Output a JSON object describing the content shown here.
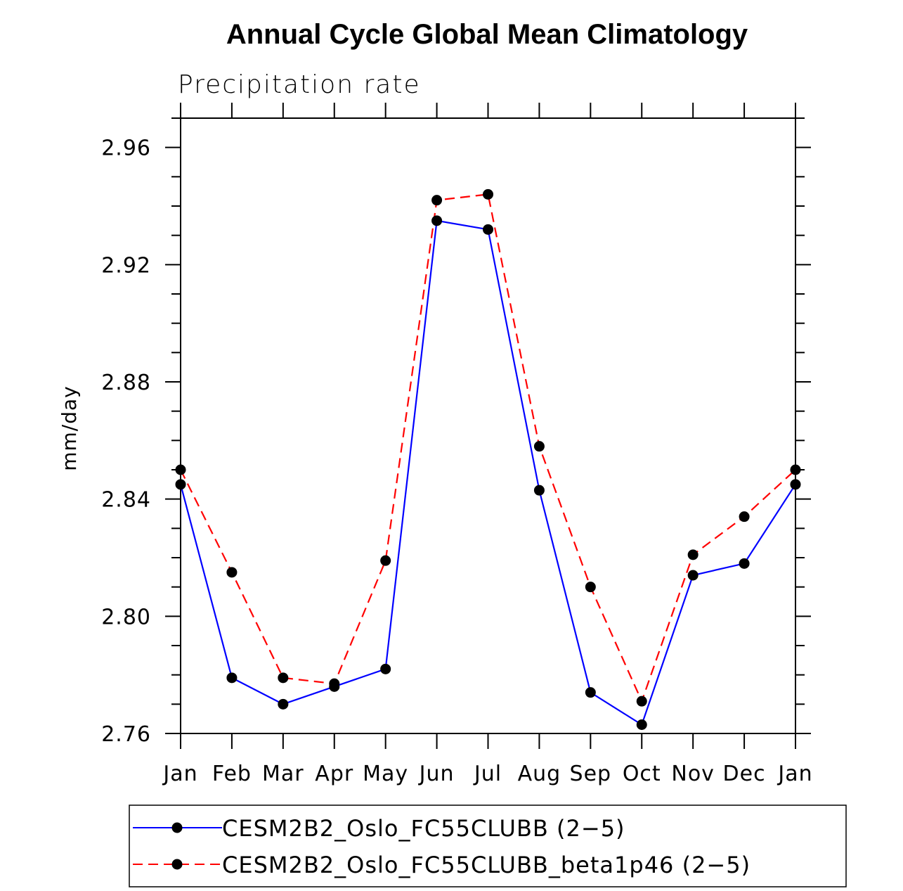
{
  "chart_data": {
    "type": "line",
    "title": "Annual Cycle Global Mean Climatology",
    "subtitle": "Precipitation rate",
    "xlabel": "",
    "ylabel": "mm/day",
    "categories": [
      "Jan",
      "Feb",
      "Mar",
      "Apr",
      "May",
      "Jun",
      "Jul",
      "Aug",
      "Sep",
      "Oct",
      "Nov",
      "Dec",
      "Jan"
    ],
    "ylim": [
      2.76,
      2.97
    ],
    "yticks": [
      2.76,
      2.8,
      2.84,
      2.88,
      2.92,
      2.96
    ],
    "ytick_labels": [
      "2.76",
      "2.80",
      "2.84",
      "2.88",
      "2.92",
      "2.96"
    ],
    "legend_position": "bottom",
    "series": [
      {
        "name": "CESM2B2_Oslo_FC55CLUBB (2−5)",
        "color": "#0000ff",
        "dash": "solid",
        "values": [
          2.845,
          2.779,
          2.77,
          2.776,
          2.782,
          2.935,
          2.932,
          2.843,
          2.774,
          2.763,
          2.814,
          2.818,
          2.845
        ]
      },
      {
        "name": "CESM2B2_Oslo_FC55CLUBB_beta1p46 (2−5)",
        "color": "#ff0000",
        "dash": "dashed",
        "values": [
          2.85,
          2.815,
          2.779,
          2.777,
          2.819,
          2.942,
          2.944,
          2.858,
          2.81,
          2.771,
          2.821,
          2.834,
          2.85
        ]
      }
    ]
  }
}
